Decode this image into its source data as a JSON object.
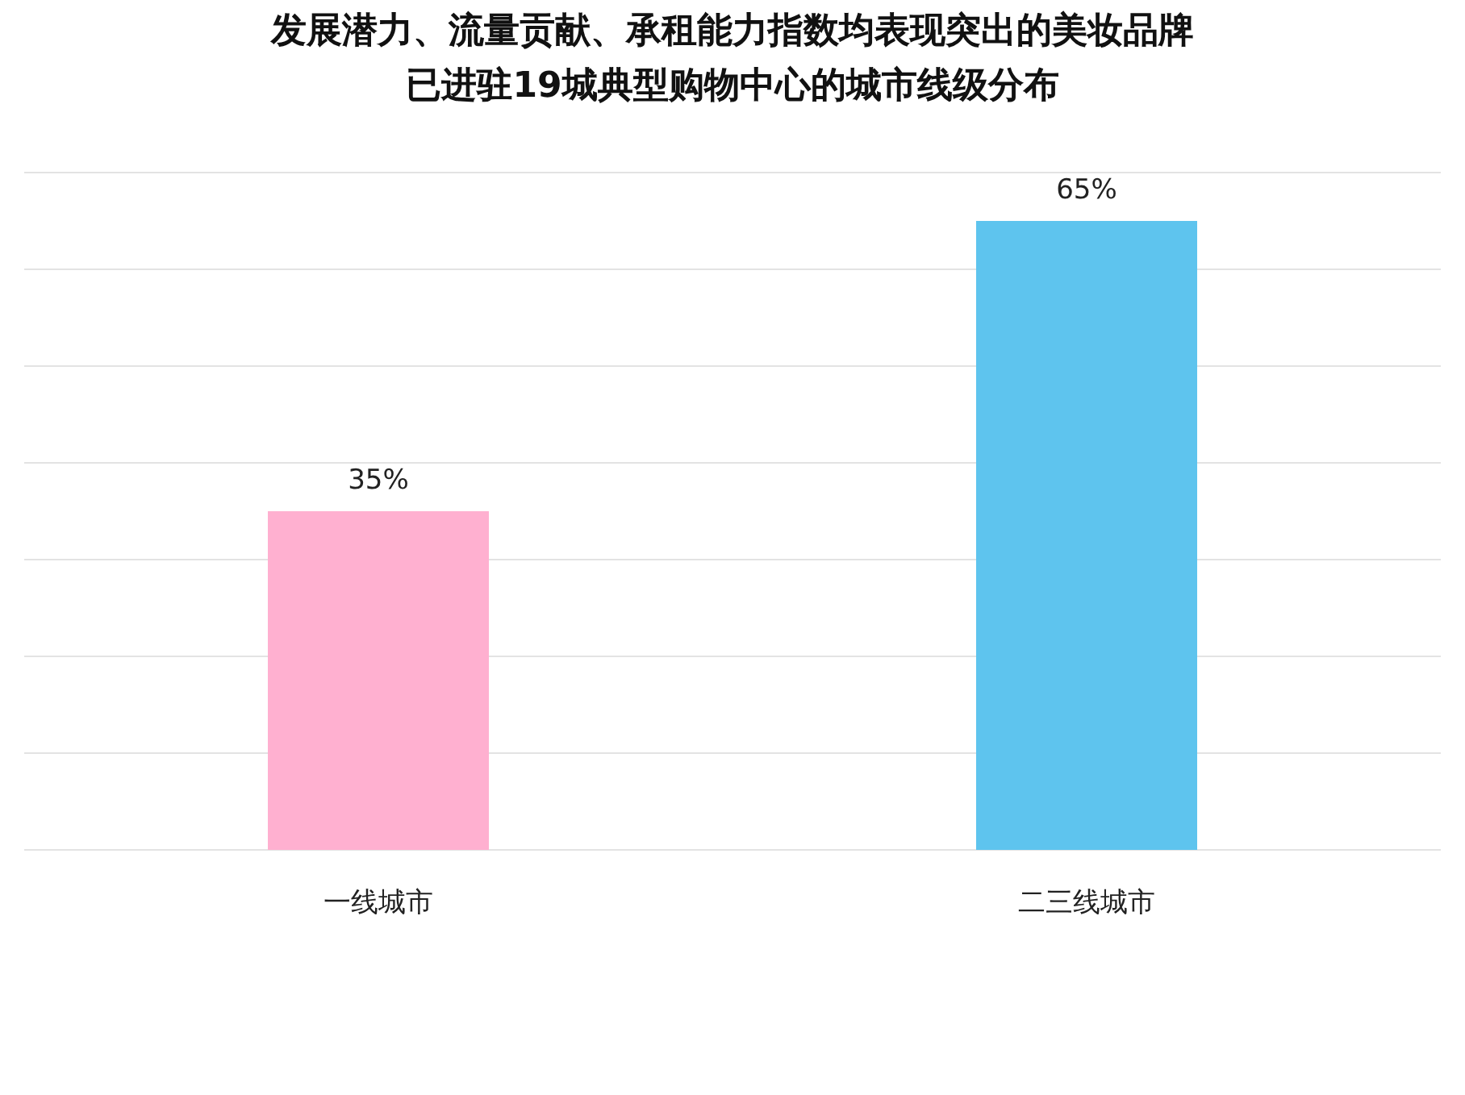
{
  "chart_data": {
    "type": "bar",
    "title": "发展潜力、流量贡献、承租能力指数均表现突出的美妆品牌",
    "subtitle": "已进驻19城典型购物中心的城市线级分布",
    "categories": [
      "一线城市",
      "二三线城市"
    ],
    "values": [
      35,
      65
    ],
    "colors": [
      "#ffb0d0",
      "#5ec4ee"
    ],
    "ylim": [
      0,
      70
    ],
    "yticks": [
      {
        "value": 0,
        "label": null
      },
      {
        "value": 10,
        "label": null
      },
      {
        "value": 20,
        "label": null
      },
      {
        "value": 30,
        "label": null
      },
      {
        "value": 40,
        "label": null
      },
      {
        "value": 50,
        "label": null
      },
      {
        "value": 60,
        "label": null
      },
      {
        "value": 70,
        "label": null
      }
    ],
    "tick_labels": "x",
    "grid": "y",
    "data_labels": true,
    "value_labels": [
      "35%",
      "65%"
    ]
  }
}
